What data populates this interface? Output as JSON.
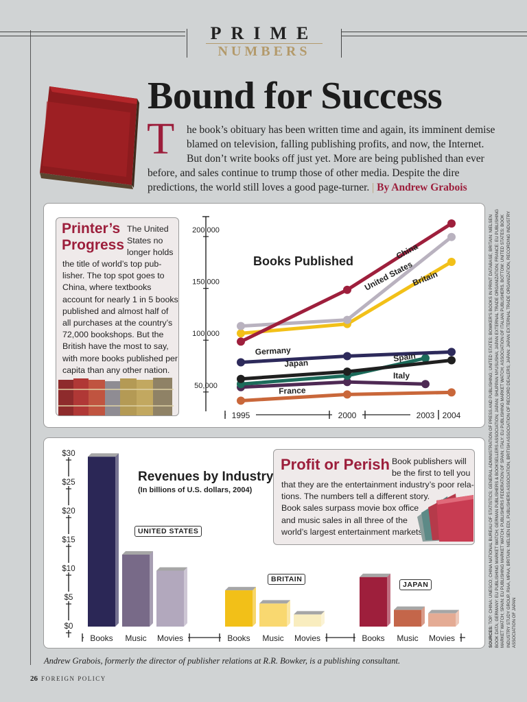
{
  "header": {
    "kicker_top": "PRIME",
    "kicker_bottom": "NUMBERS",
    "title": "Bound for Success",
    "dropcap": "T",
    "intro_lines": [
      "he book’s obituary has been written time and again, its imminent demise",
      "blamed on television, falling publishing profits, and now, the Internet.",
      "But don’t write books off just yet. More are being published than ever",
      "before, and sales continue to trump those of other media. Despite the dire",
      "predictions, the world still loves a good page-turner."
    ],
    "byline_sep": "|",
    "byline": "By Andrew Grabois"
  },
  "sidebar1": {
    "head_line1": "Printer’s",
    "head_line2": "Progress",
    "text_right": [
      "The United",
      "States no",
      "longer holds"
    ],
    "text": [
      "the title of world’s top pub-",
      "lisher. The top spot goes to",
      "China, where textbooks",
      "account for nearly 1 in 5 books",
      "published and almost half of",
      "all purchases at the country’s",
      "72,000 bookshops. But the",
      "British have the most to say,",
      "with more books published per",
      "capita than any other nation."
    ]
  },
  "sidebar2": {
    "head": "Profit or Perish",
    "text_right": [
      "Book publishers will",
      "be the first to tell you"
    ],
    "text": [
      "that they are the entertainment industry’s poor rela-",
      "tions. The numbers tell a different story.",
      "Book sales surpass movie box office",
      "and music sales in all three of the",
      "world’s largest entertainment markets."
    ]
  },
  "chart_data": [
    {
      "type": "line",
      "title": "Books Published",
      "x": [
        1995,
        2000,
        2003,
        2004
      ],
      "x_tick_labels": [
        "1995",
        "2000",
        "2003",
        "2004"
      ],
      "y_tick_labels": [
        "50,000",
        "100,000",
        "150,000",
        "200,000"
      ],
      "ylim": [
        30000,
        210000
      ],
      "series": [
        {
          "name": "China",
          "color": "#9e1f3c",
          "values": [
            92000,
            142000,
            null,
            206000
          ]
        },
        {
          "name": "United States",
          "color": "#b9b2bf",
          "values": [
            107000,
            113000,
            null,
            193000
          ]
        },
        {
          "name": "Britain",
          "color": "#f2c018",
          "values": [
            100000,
            109000,
            null,
            169000
          ]
        },
        {
          "name": "Germany",
          "color": "#2d2a5b",
          "values": [
            72000,
            78000,
            null,
            82000
          ]
        },
        {
          "name": "Japan",
          "color": "#1f1f1f",
          "values": [
            56000,
            63000,
            null,
            74000
          ]
        },
        {
          "name": "Spain",
          "color": "#1b6b5a",
          "values": [
            51000,
            59000,
            76000,
            null
          ]
        },
        {
          "name": "Italy",
          "color": "#4e2a54",
          "values": [
            48000,
            53000,
            51000,
            null
          ]
        },
        {
          "name": "France",
          "color": "#c9673a",
          "values": [
            35000,
            41000,
            null,
            43000
          ]
        }
      ],
      "legend": "inline labels",
      "grid": false
    },
    {
      "type": "bar",
      "title": "Revenues by Industry",
      "subtitle": "(In billions of U.S. dollars, 2004)",
      "ylabel": "",
      "y_tick_labels": [
        "$0",
        "$5",
        "$10",
        "$15",
        "$20",
        "$25",
        "$30"
      ],
      "ylim": [
        0,
        30
      ],
      "groups": [
        {
          "name": "UNITED STATES",
          "categories": [
            "Books",
            "Music",
            "Movies"
          ],
          "values": [
            29.5,
            12.5,
            9.7
          ],
          "colors": [
            "#2b2756",
            "#786a88",
            "#b2a8bd"
          ]
        },
        {
          "name": "BRITAIN",
          "categories": [
            "Books",
            "Music",
            "Movies"
          ],
          "values": [
            6.3,
            4.0,
            2.1
          ],
          "colors": [
            "#f2c018",
            "#f9d870",
            "#f9edbf"
          ]
        },
        {
          "name": "JAPAN",
          "categories": [
            "Books",
            "Music",
            "Movies"
          ],
          "values": [
            8.6,
            2.9,
            2.3
          ],
          "colors": [
            "#9e1f3c",
            "#c4664a",
            "#e4ab94"
          ]
        }
      ]
    }
  ],
  "caption": "Andrew Grabois, formerly the director of publisher relations at R.R. Bowker, is a publishing consultant.",
  "footer": {
    "page_number": "26",
    "magazine": "FOREIGN POLICY"
  },
  "sources": {
    "label": "SOURCES:",
    "text": "TOP: CHINA: UNESCO; CHINA NATIONAL BUREAU OF STATISTICS; GENERAL ADMINISTRATION OF PRESS AND PUBLISHING; UNITED STATES: BOWKER'S BOOKS IN PRINT DATABASE; BRITAIN: NIELSEN BOOK DATA; GERMANY: EU PUBLISHING MARKET WATCH; GERMAN PUBLISHERS & BOOKSELLERS ASSOCIATION; JAPAN: SHUPPAN NYUSUSHA; JAPAN EXTERNAL TRADE ORGANIZATION; FRANCE: EU PUBLISHING MARKET WATCH; SPAIN: EU PUBLISHING MARKET WATCH; PUBLISHERS FEDERATION OF SPAIN; ITALY: EU PUBLISHING MARKET WATCH; ASSOCIATION OF ITALIAN PUBLISHERS. BOTTOM: UNITED STATES: BOOK INDUSTRY STUDY GROUP, RIAA, MPAA; BRITAIN: NIELSEN EDI, PUBLISHERS ASSOCIATION, BRITISH ASSOCIATION OF RECORD DEALERS; JAPAN: JAPAN EXTERNAL TRADE ORGANIZATION, RECORDING INDUSTRY ASSOCIATION OF JAPAN"
  },
  "colors": {
    "accent": "#9c1e3b",
    "gold": "#b39a6b",
    "background": "#d0d3d4"
  }
}
